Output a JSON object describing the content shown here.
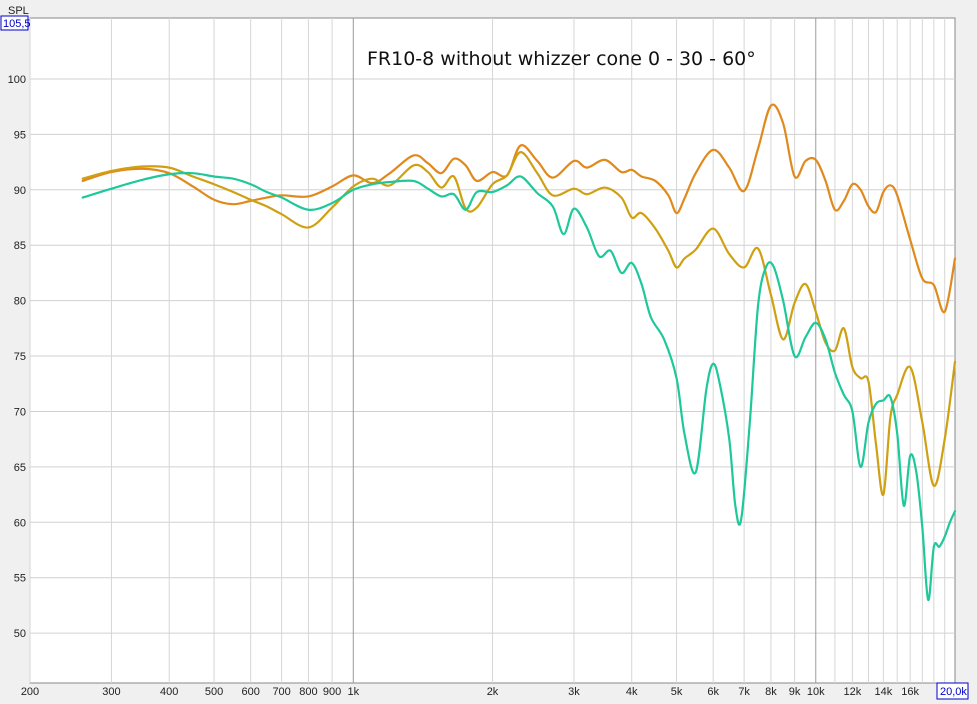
{
  "chart_data": {
    "type": "line",
    "title": "FR10-8 without whizzer cone 0 - 30 - 60°",
    "ylabel": "SPL",
    "xscale": "log",
    "xlim": [
      200,
      20000
    ],
    "ylim": [
      45.5,
      105.5
    ],
    "ytop_box": "105,5",
    "xend_box": "20,0k",
    "grid": true,
    "x_ticks": [
      {
        "value": 200,
        "label": "200"
      },
      {
        "value": 300,
        "label": "300"
      },
      {
        "value": 400,
        "label": "400"
      },
      {
        "value": 500,
        "label": "500"
      },
      {
        "value": 600,
        "label": "600"
      },
      {
        "value": 700,
        "label": "700"
      },
      {
        "value": 800,
        "label": "800"
      },
      {
        "value": 900,
        "label": "900"
      },
      {
        "value": 1000,
        "label": "1k"
      },
      {
        "value": 2000,
        "label": "2k"
      },
      {
        "value": 3000,
        "label": "3k"
      },
      {
        "value": 4000,
        "label": "4k"
      },
      {
        "value": 5000,
        "label": "5k"
      },
      {
        "value": 6000,
        "label": "6k"
      },
      {
        "value": 7000,
        "label": "7k"
      },
      {
        "value": 8000,
        "label": "8k"
      },
      {
        "value": 9000,
        "label": "9k"
      },
      {
        "value": 10000,
        "label": "10k"
      },
      {
        "value": 12000,
        "label": "12k"
      },
      {
        "value": 14000,
        "label": "14k"
      },
      {
        "value": 16000,
        "label": "16k"
      }
    ],
    "y_ticks": [
      {
        "value": 100,
        "label": "100"
      },
      {
        "value": 95,
        "label": "95"
      },
      {
        "value": 90,
        "label": "90"
      },
      {
        "value": 85,
        "label": "85"
      },
      {
        "value": 80,
        "label": "80"
      },
      {
        "value": 75,
        "label": "75"
      },
      {
        "value": 70,
        "label": "70"
      },
      {
        "value": 65,
        "label": "65"
      },
      {
        "value": 60,
        "label": "60"
      },
      {
        "value": 55,
        "label": "55"
      },
      {
        "value": 50,
        "label": "50"
      }
    ],
    "series": [
      {
        "color": "#e08a1e",
        "x": [
          260,
          300,
          350,
          400,
          450,
          500,
          550,
          600,
          650,
          700,
          800,
          900,
          1000,
          1100,
          1200,
          1350,
          1450,
          1550,
          1650,
          1750,
          1850,
          2000,
          2150,
          2300,
          2500,
          2700,
          3000,
          3200,
          3500,
          3800,
          4000,
          4200,
          4500,
          4800,
          5000,
          5200,
          5500,
          6000,
          6500,
          7000,
          7500,
          8000,
          8500,
          9000,
          9500,
          10000,
          10500,
          11000,
          11500,
          12000,
          12500,
          13000,
          13500,
          14000,
          14500,
          15000,
          16000,
          17000,
          18000,
          19000,
          20000
        ],
        "y": [
          90.8,
          91.6,
          91.9,
          91.5,
          90.3,
          89.1,
          88.7,
          89.0,
          89.3,
          89.5,
          89.4,
          90.3,
          91.3,
          90.6,
          91.5,
          93.1,
          92.4,
          91.5,
          92.8,
          92.2,
          90.8,
          91.6,
          91.3,
          94.0,
          92.6,
          91.1,
          92.6,
          92.0,
          92.7,
          91.6,
          91.8,
          91.2,
          90.8,
          89.5,
          87.9,
          89.2,
          91.5,
          93.6,
          92.0,
          89.9,
          93.7,
          97.6,
          96.0,
          91.2,
          92.6,
          92.7,
          90.8,
          88.2,
          89.0,
          90.5,
          90.0,
          88.5,
          88.0,
          89.8,
          90.4,
          89.5,
          85.5,
          82.0,
          81.4,
          79.0,
          83.8
        ]
      },
      {
        "color": "#cfa012",
        "x": [
          260,
          300,
          350,
          400,
          450,
          500,
          550,
          600,
          650,
          700,
          800,
          900,
          1000,
          1100,
          1200,
          1350,
          1450,
          1550,
          1650,
          1750,
          1850,
          2000,
          2150,
          2300,
          2500,
          2700,
          3000,
          3200,
          3500,
          3800,
          4000,
          4200,
          4500,
          4800,
          5000,
          5200,
          5500,
          6000,
          6500,
          7000,
          7500,
          8000,
          8500,
          9000,
          9500,
          10000,
          10500,
          11000,
          11500,
          12000,
          12500,
          13000,
          13500,
          14000,
          14500,
          15000,
          16000,
          17000,
          18000,
          19000,
          20000
        ],
        "y": [
          91.0,
          91.7,
          92.1,
          92.0,
          91.2,
          90.5,
          89.8,
          89.1,
          88.5,
          87.8,
          86.6,
          88.4,
          90.3,
          91.0,
          90.4,
          92.2,
          91.6,
          90.2,
          91.2,
          88.3,
          88.4,
          90.5,
          91.3,
          93.4,
          91.5,
          89.5,
          90.1,
          89.6,
          90.2,
          89.3,
          87.5,
          87.9,
          86.5,
          84.5,
          83.0,
          83.8,
          84.6,
          86.5,
          84.2,
          83.0,
          84.7,
          80.5,
          76.5,
          79.8,
          81.5,
          79.0,
          76.2,
          75.5,
          77.5,
          74.0,
          73.0,
          72.7,
          67.0,
          62.5,
          69.5,
          71.5,
          74.0,
          69.0,
          63.3,
          67.5,
          74.5
        ]
      },
      {
        "color": "#1ec89a",
        "x": [
          260,
          300,
          350,
          400,
          450,
          500,
          550,
          600,
          650,
          700,
          800,
          900,
          1000,
          1100,
          1200,
          1350,
          1450,
          1550,
          1650,
          1750,
          1850,
          2000,
          2150,
          2300,
          2500,
          2700,
          2850,
          3000,
          3200,
          3400,
          3600,
          3800,
          4000,
          4200,
          4400,
          4700,
          5000,
          5200,
          5500,
          5800,
          6000,
          6200,
          6500,
          6700,
          6900,
          7200,
          7500,
          7800,
          8100,
          8500,
          9000,
          9500,
          10000,
          10500,
          11000,
          11500,
          12000,
          12500,
          13000,
          13500,
          14000,
          14500,
          15000,
          15500,
          16000,
          16500,
          17000,
          17500,
          18000,
          18500,
          19000,
          19500,
          20000
        ],
        "y": [
          89.3,
          90.1,
          90.9,
          91.4,
          91.5,
          91.2,
          91.0,
          90.5,
          89.8,
          89.3,
          88.2,
          88.8,
          90.0,
          90.5,
          90.7,
          90.8,
          90.1,
          89.4,
          89.6,
          88.2,
          89.8,
          89.8,
          90.4,
          91.2,
          89.7,
          88.5,
          86.0,
          88.3,
          86.6,
          84.0,
          84.5,
          82.5,
          83.4,
          81.5,
          78.5,
          76.5,
          73.0,
          68.0,
          64.5,
          72.0,
          74.3,
          72.5,
          67.5,
          61.5,
          60.3,
          69.0,
          79.5,
          83.0,
          83.1,
          80.0,
          75.0,
          76.7,
          78.0,
          76.5,
          73.5,
          71.5,
          70.0,
          65.0,
          69.0,
          70.7,
          71.0,
          71.3,
          68.0,
          61.5,
          66.0,
          64.5,
          59.5,
          53.0,
          57.8,
          57.8,
          58.7,
          60.0,
          61.0
        ]
      }
    ]
  }
}
